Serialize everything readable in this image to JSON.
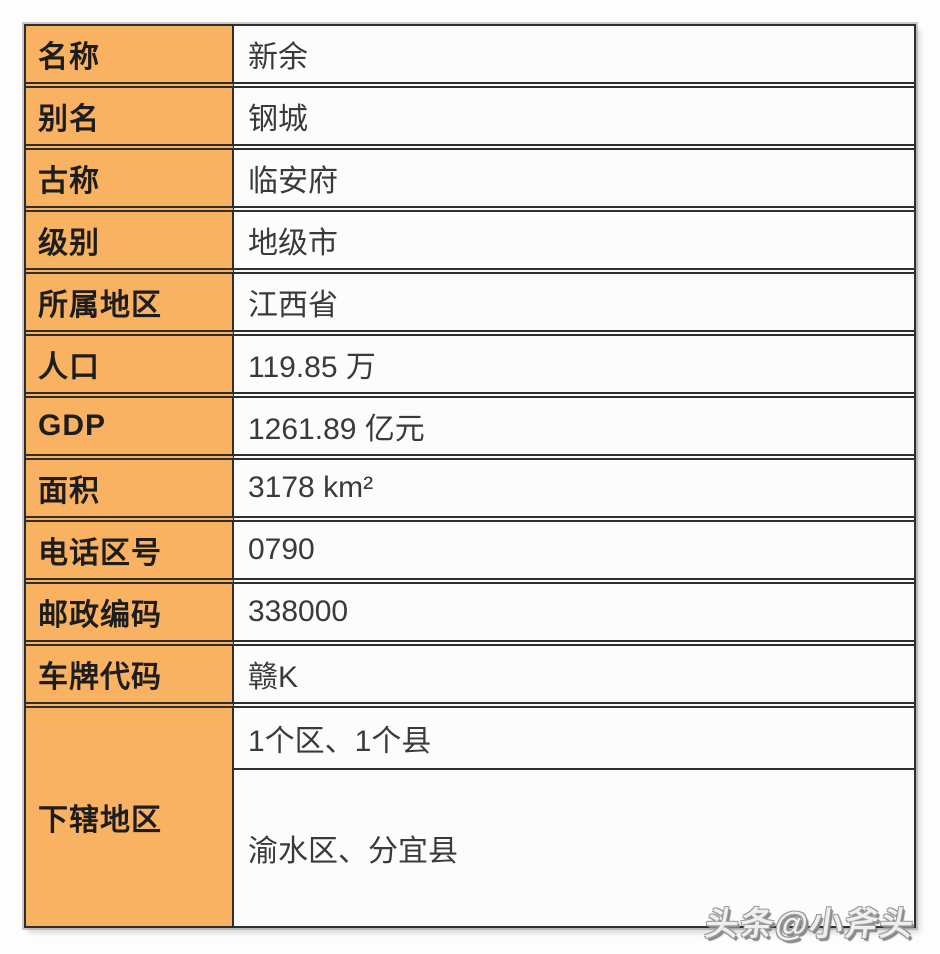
{
  "page": {
    "background_color": "#fdfdfd"
  },
  "table": {
    "accent_color": "#F9B262",
    "border_color": "#2e2e2e",
    "label_text_color": "#1d1d1d",
    "value_text_color": "#3a3a3a",
    "rows": [
      {
        "label": "名称",
        "value": "新余"
      },
      {
        "label": "别名",
        "value": "钢城"
      },
      {
        "label": "古称",
        "value": "临安府"
      },
      {
        "label": "级别",
        "value": "地级市"
      },
      {
        "label": "所属地区",
        "value": "江西省"
      },
      {
        "label": "人口",
        "value": "119.85 万"
      },
      {
        "label": "GDP",
        "value": "1261.89 亿元"
      },
      {
        "label": "面积",
        "value": "3178 km²"
      },
      {
        "label": "电话区号",
        "value": "0790"
      },
      {
        "label": "邮政编码",
        "value": "338000"
      },
      {
        "label": "车牌代码",
        "value": "赣K"
      }
    ],
    "merged_row": {
      "label": "下辖地区",
      "values": [
        "1个区、1个县",
        "渝水区、分宜县"
      ]
    }
  },
  "watermark": {
    "text": "头条@小斧头"
  }
}
